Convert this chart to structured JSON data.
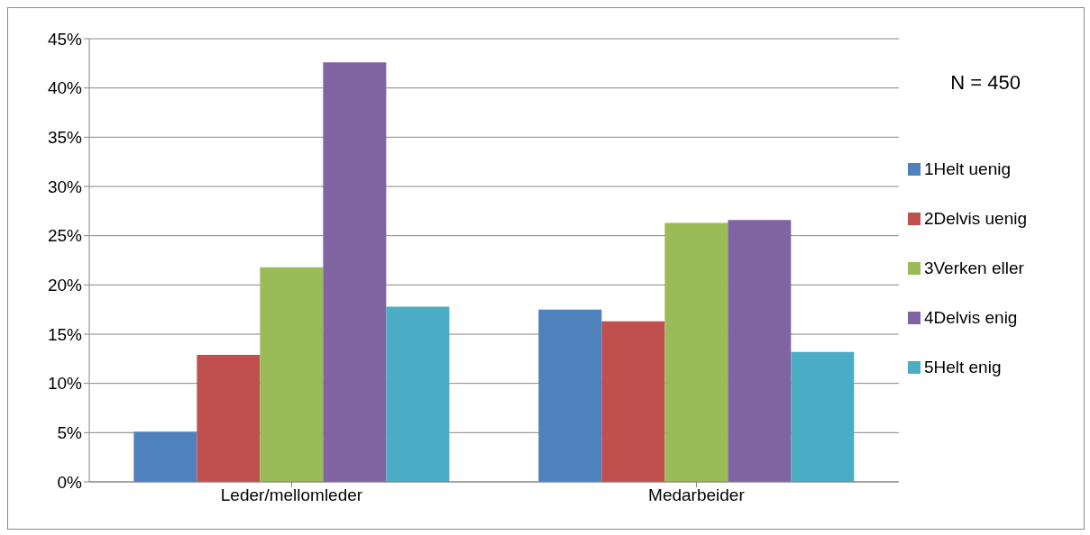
{
  "chart_data": {
    "type": "bar",
    "categories": [
      "Leder/mellomleder",
      "Medarbeider"
    ],
    "series": [
      {
        "name": "1Helt uenig",
        "color": "#4f81bd",
        "values": [
          5.1,
          17.5
        ]
      },
      {
        "name": "2Delvis uenig",
        "color": "#c0504d",
        "values": [
          12.9,
          16.3
        ]
      },
      {
        "name": "3Verken eller",
        "color": "#9bbb59",
        "values": [
          21.8,
          26.3
        ]
      },
      {
        "name": "4Delvis enig",
        "color": "#8064a2",
        "values": [
          42.6,
          26.6
        ]
      },
      {
        "name": "5Helt enig",
        "color": "#4bacc6",
        "values": [
          17.8,
          13.2
        ]
      }
    ],
    "ylim": [
      0,
      45
    ],
    "yticks": [
      {
        "value": 0,
        "label": "0%"
      },
      {
        "value": 5,
        "label": "5%"
      },
      {
        "value": 10,
        "label": "10%"
      },
      {
        "value": 15,
        "label": "15%"
      },
      {
        "value": 20,
        "label": "20%"
      },
      {
        "value": 25,
        "label": "25%"
      },
      {
        "value": 30,
        "label": "30%"
      },
      {
        "value": 35,
        "label": "35%"
      },
      {
        "value": 40,
        "label": "40%"
      },
      {
        "value": 45,
        "label": "45%"
      }
    ],
    "grid": "y",
    "legend": "right",
    "annotations": [
      "N = 450"
    ]
  }
}
